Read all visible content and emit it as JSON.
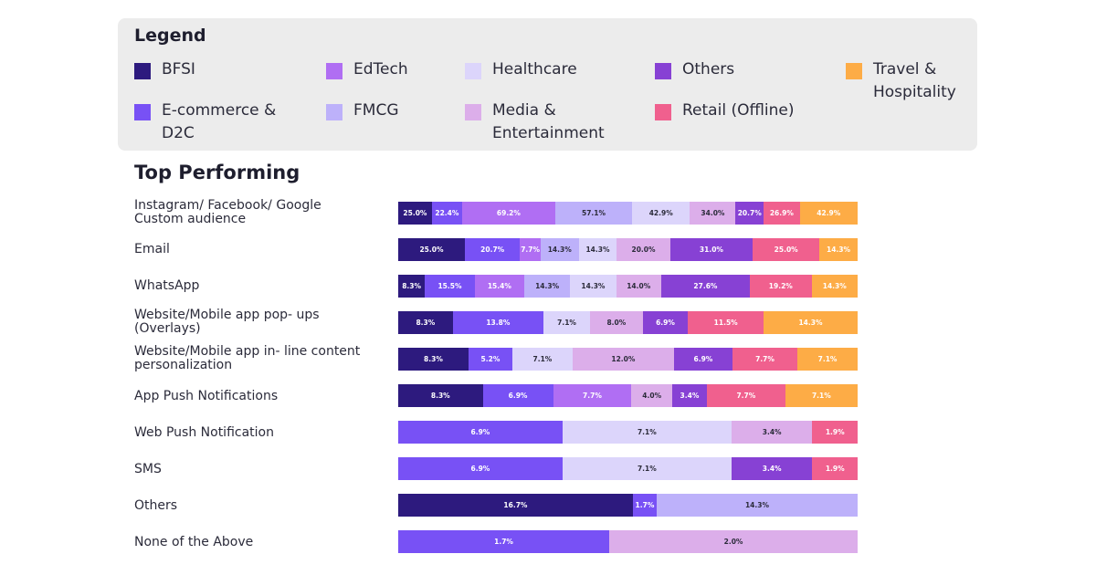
{
  "legend": {
    "title": "Legend",
    "items": [
      {
        "key": "bfsi",
        "label": "BFSI",
        "color": "#2d1a7e"
      },
      {
        "key": "edtech",
        "label": "EdTech",
        "color": "#b06ef3"
      },
      {
        "key": "healthcare",
        "label": "Healthcare",
        "color": "#dcd5fb"
      },
      {
        "key": "others",
        "label": "Others",
        "color": "#8741d4"
      },
      {
        "key": "travel",
        "label": "Travel & Hospitality",
        "color": "#fdac46"
      },
      {
        "key": "ecommerce",
        "label": "E-commerce & D2C",
        "color": "#7851f5"
      },
      {
        "key": "fmcg",
        "label": "FMCG",
        "color": "#bdb1fa"
      },
      {
        "key": "media",
        "label": "Media & Entertainment",
        "color": "#dcaeea"
      },
      {
        "key": "retail",
        "label": "Retail (Offline)",
        "color": "#f0608e"
      }
    ]
  },
  "section_title": "Top Performing",
  "chart_data": {
    "type": "bar",
    "orientation": "horizontal",
    "stacked": true,
    "normalized": true,
    "categories": [
      "Instagram/ Facebook/ Google Custom audience",
      "Email",
      "WhatsApp",
      "Website/Mobile app pop- ups (Overlays)",
      "Website/Mobile app in- line content personalization",
      "App Push Notifications",
      "Web Push Notification",
      "SMS",
      "Others",
      "None of the Above"
    ],
    "rows": [
      {
        "segments": [
          [
            "bfsi",
            25.0,
            "25.0%"
          ],
          [
            "ecommerce",
            22.4,
            "22.4%"
          ],
          [
            "edtech",
            69.2,
            "69.2%"
          ],
          [
            "fmcg",
            57.1,
            "57.1%"
          ],
          [
            "healthcare",
            42.9,
            "42.9%"
          ],
          [
            "media",
            34.0,
            "34.0%"
          ],
          [
            "others",
            20.7,
            "20.7%"
          ],
          [
            "retail",
            26.9,
            "26.9%"
          ],
          [
            "travel",
            42.9,
            "42.9%"
          ]
        ]
      },
      {
        "segments": [
          [
            "bfsi",
            25.0,
            "25.0%"
          ],
          [
            "ecommerce",
            20.7,
            "20.7%"
          ],
          [
            "edtech",
            7.7,
            "7.7%"
          ],
          [
            "fmcg",
            14.3,
            "14.3%"
          ],
          [
            "healthcare",
            14.3,
            "14.3%"
          ],
          [
            "media",
            20.0,
            "20.0%"
          ],
          [
            "others",
            31.0,
            "31.0%"
          ],
          [
            "retail",
            25.0,
            "25.0%"
          ],
          [
            "travel",
            14.3,
            "14.3%"
          ]
        ]
      },
      {
        "segments": [
          [
            "bfsi",
            8.3,
            "8.3%"
          ],
          [
            "ecommerce",
            15.5,
            "15.5%"
          ],
          [
            "edtech",
            15.4,
            "15.4%"
          ],
          [
            "fmcg",
            14.3,
            "14.3%"
          ],
          [
            "healthcare",
            14.3,
            "14.3%"
          ],
          [
            "media",
            14.0,
            "14.0%"
          ],
          [
            "others",
            27.6,
            "27.6%"
          ],
          [
            "retail",
            19.2,
            "19.2%"
          ],
          [
            "travel",
            14.3,
            "14.3%"
          ]
        ]
      },
      {
        "segments": [
          [
            "bfsi",
            8.3,
            "8.3%"
          ],
          [
            "ecommerce",
            13.8,
            "13.8%"
          ],
          [
            "healthcare",
            7.1,
            "7.1%"
          ],
          [
            "media",
            8.0,
            "8.0%"
          ],
          [
            "others",
            6.9,
            "6.9%"
          ],
          [
            "retail",
            11.5,
            "11.5%"
          ],
          [
            "travel",
            14.3,
            "14.3%"
          ]
        ]
      },
      {
        "segments": [
          [
            "bfsi",
            8.3,
            "8.3%"
          ],
          [
            "ecommerce",
            5.2,
            "5.2%"
          ],
          [
            "healthcare",
            7.1,
            "7.1%"
          ],
          [
            "media",
            12.0,
            "12.0%"
          ],
          [
            "others",
            6.9,
            "6.9%"
          ],
          [
            "retail",
            7.7,
            "7.7%"
          ],
          [
            "travel",
            7.1,
            "7.1%"
          ]
        ]
      },
      {
        "segments": [
          [
            "bfsi",
            8.3,
            "8.3%"
          ],
          [
            "ecommerce",
            6.9,
            "6.9%"
          ],
          [
            "edtech",
            7.7,
            "7.7%"
          ],
          [
            "media",
            4.0,
            "4.0%"
          ],
          [
            "others",
            3.4,
            "3.4%"
          ],
          [
            "retail",
            7.7,
            "7.7%"
          ],
          [
            "travel",
            7.1,
            "7.1%"
          ]
        ]
      },
      {
        "segments": [
          [
            "ecommerce",
            6.9,
            "6.9%"
          ],
          [
            "healthcare",
            7.1,
            "7.1%"
          ],
          [
            "media",
            3.4,
            "3.4%"
          ],
          [
            "retail",
            1.9,
            "1.9%"
          ]
        ]
      },
      {
        "segments": [
          [
            "ecommerce",
            6.9,
            "6.9%"
          ],
          [
            "healthcare",
            7.1,
            "7.1%"
          ],
          [
            "others",
            3.4,
            "3.4%"
          ],
          [
            "retail",
            1.9,
            "1.9%"
          ]
        ]
      },
      {
        "segments": [
          [
            "bfsi",
            16.7,
            "16.7%"
          ],
          [
            "ecommerce",
            1.7,
            "1.7%"
          ],
          [
            "fmcg",
            14.3,
            "14.3%"
          ]
        ]
      },
      {
        "segments": [
          [
            "ecommerce",
            1.7,
            "1.7%"
          ],
          [
            "media",
            2.0,
            "2.0%"
          ]
        ]
      }
    ]
  }
}
